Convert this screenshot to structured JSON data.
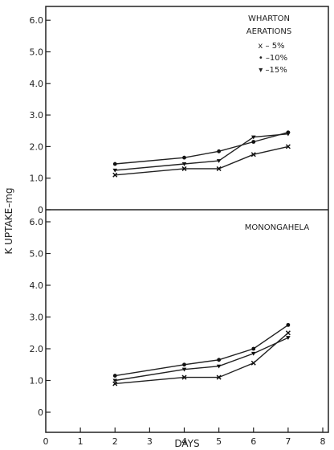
{
  "chart_data": [
    {
      "type": "line",
      "panel_label": "WHARTON",
      "legend_title": "AERATIONS",
      "legend_placement": "top-right",
      "ylabel": "K UPTAKE–mg",
      "xlabel": "DAYS",
      "xlim": [
        0,
        8
      ],
      "ylim": [
        0,
        7
      ],
      "x_ticks": [
        "0",
        "1",
        "2",
        "3",
        "4",
        "5",
        "6",
        "7",
        "8"
      ],
      "y_ticks": [
        "0",
        "1.0",
        "2.0",
        "3.0",
        "4.0",
        "5.0",
        "6.0"
      ],
      "series": [
        {
          "name": "x – 5%",
          "marker": "x",
          "x": [
            2,
            4,
            5,
            6,
            7
          ],
          "values": [
            1.1,
            1.3,
            1.3,
            1.75,
            2.0
          ]
        },
        {
          "name": "• –10%",
          "marker": "dot",
          "x": [
            2,
            4,
            5,
            6,
            7
          ],
          "values": [
            1.45,
            1.65,
            1.85,
            2.15,
            2.45
          ]
        },
        {
          "name": "▾ –15%",
          "marker": "triangle",
          "x": [
            2,
            4,
            5,
            6,
            7
          ],
          "values": [
            1.25,
            1.45,
            1.55,
            2.3,
            2.4
          ]
        }
      ]
    },
    {
      "type": "line",
      "panel_label": "MONONGAHELA",
      "ylabel": "K UPTAKE–mg",
      "xlabel": "DAYS",
      "xlim": [
        0,
        8
      ],
      "ylim": [
        0,
        7
      ],
      "x_ticks": [
        "0",
        "1",
        "2",
        "3",
        "4",
        "5",
        "6",
        "7",
        "8"
      ],
      "y_ticks": [
        "0",
        "1.0",
        "2.0",
        "3.0",
        "4.0",
        "5.0",
        "6.0"
      ],
      "series": [
        {
          "name": "x – 5%",
          "marker": "x",
          "x": [
            2,
            4,
            5,
            6,
            7
          ],
          "values": [
            0.9,
            1.1,
            1.1,
            1.55,
            2.5
          ]
        },
        {
          "name": "• –10%",
          "marker": "dot",
          "x": [
            2,
            4,
            5,
            6,
            7
          ],
          "values": [
            1.15,
            1.5,
            1.65,
            2.0,
            2.75
          ]
        },
        {
          "name": "▾ –15%",
          "marker": "triangle",
          "x": [
            2,
            4,
            5,
            6,
            7
          ],
          "values": [
            1.0,
            1.35,
            1.45,
            1.85,
            2.35
          ]
        }
      ]
    }
  ]
}
